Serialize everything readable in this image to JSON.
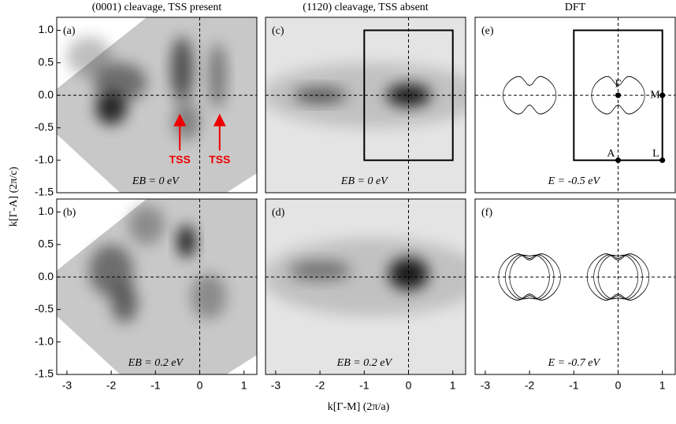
{
  "xlabel": "k[Γ-M] (2π/a)",
  "ylabel": "k[Γ-A] (2π/c)",
  "chart_data": [
    {
      "type": "map",
      "title": "(0001) cleavage, TSS present",
      "panel_label": "(a)",
      "annotation": "EB = 0 eV",
      "markers": [
        "TSS",
        "TSS"
      ],
      "xlim": [
        -3.23,
        1.29
      ],
      "ylim": [
        -1.5,
        1.2
      ],
      "yticks": [
        {
          "value": 1.0,
          "label": "1.0"
        },
        {
          "value": 0.5,
          "label": "0.5"
        },
        {
          "value": 0.0,
          "label": "0.0"
        },
        {
          "value": -0.5,
          "label": "-0.5"
        },
        {
          "value": -1.0,
          "label": "-1.0"
        },
        {
          "value": -1.5,
          "label": "-1.5"
        }
      ]
    },
    {
      "type": "map",
      "panel_label": "(b)",
      "annotation": "EB = 0.2 eV",
      "xlim": [
        -3.23,
        1.29
      ],
      "ylim": [
        -1.5,
        1.2
      ],
      "xticks": [
        -3,
        -2,
        -1,
        0,
        1
      ],
      "yticks": [
        {
          "value": 1.0,
          "label": "1.0"
        },
        {
          "value": 0.5,
          "label": "0.5"
        },
        {
          "value": 0.0,
          "label": "0.0"
        },
        {
          "value": -0.5,
          "label": "-0.5"
        },
        {
          "value": -1.0,
          "label": "-1.0"
        },
        {
          "value": -1.5,
          "label": "-1.5"
        }
      ]
    },
    {
      "type": "map",
      "title": "(1120) cleavage, TSS absent",
      "panel_label": "(c)",
      "annotation": "EB = 0 eV",
      "xlim": [
        -3.23,
        1.29
      ],
      "ylim": [
        -1.5,
        1.2
      ]
    },
    {
      "type": "map",
      "panel_label": "(d)",
      "annotation": "EB = 0.2 eV",
      "xlim": [
        -3.23,
        1.29
      ],
      "ylim": [
        -1.5,
        1.2
      ],
      "xticks": [
        -3,
        -2,
        -1,
        0,
        1
      ]
    },
    {
      "type": "dft",
      "title": "DFT",
      "panel_label": "(e)",
      "annotation": "E = -0.5 eV",
      "points": [
        "Γ",
        "M",
        "A",
        "L"
      ],
      "xlim": [
        -3.23,
        1.29
      ],
      "ylim": [
        -1.5,
        1.2
      ]
    },
    {
      "type": "dft",
      "panel_label": "(f)",
      "annotation": "E = -0.7 eV",
      "xlim": [
        -3.23,
        1.29
      ],
      "ylim": [
        -1.5,
        1.2
      ],
      "xticks": [
        -3,
        -2,
        -1,
        0,
        1
      ]
    }
  ]
}
